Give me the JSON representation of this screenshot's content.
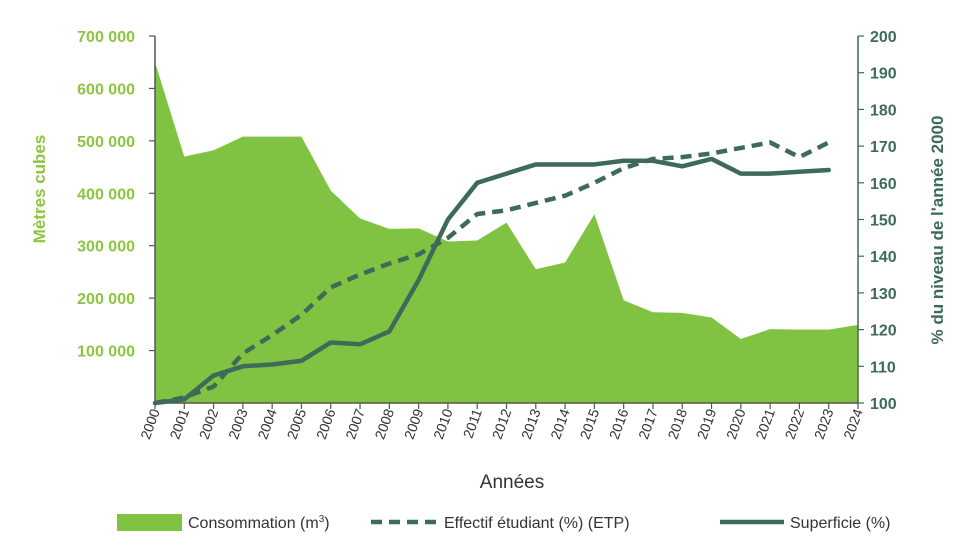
{
  "chart_data": {
    "type": "area+line",
    "x": [
      "2000",
      "2001",
      "2002",
      "2003",
      "2004",
      "2005",
      "2006",
      "2007",
      "2008",
      "2009",
      "2010",
      "2011",
      "2012",
      "2013",
      "2014",
      "2015",
      "2016",
      "2017",
      "2018",
      "2019",
      "2020",
      "2021",
      "2022",
      "2023",
      "2024"
    ],
    "xlabel": "Années",
    "ylabel_left": "Mètres cubes",
    "ylabel_right": "% du niveau de l'année 2000",
    "ylim_left": [
      0,
      700000
    ],
    "ylim_right": [
      100,
      200
    ],
    "yticks_left": [
      "100 000",
      "200 000",
      "300 000",
      "400 000",
      "500 000",
      "600 000",
      "700 000"
    ],
    "yticks_left_values": [
      100000,
      200000,
      300000,
      400000,
      500000,
      600000,
      700000
    ],
    "yticks_right": [
      "100",
      "110",
      "120",
      "130",
      "140",
      "150",
      "160",
      "170",
      "180",
      "190",
      "200"
    ],
    "yticks_right_values": [
      100,
      110,
      120,
      130,
      140,
      150,
      160,
      170,
      180,
      190,
      200
    ],
    "series": [
      {
        "name": "Consommation (m³)",
        "legend_main": "Consommation (m",
        "legend_sup": "3",
        "legend_tail": ")",
        "type": "area",
        "axis": "left",
        "color": "#80c242",
        "values": [
          650000,
          470000,
          482000,
          508000,
          508000,
          508000,
          405000,
          352000,
          332000,
          333000,
          308000,
          310000,
          344000,
          255000,
          268000,
          360000,
          196000,
          173000,
          172000,
          163000,
          122000,
          141000,
          140000,
          140000,
          149000
        ]
      },
      {
        "name": "Effectif étudiant (%) (ETP)",
        "legend_label": "Effectif étudiant (%) (ETP)",
        "type": "line",
        "style": "dashed",
        "axis": "right",
        "color": "#3d6b57",
        "values": [
          100,
          101.5,
          104.5,
          113.5,
          118.5,
          124,
          131.5,
          135,
          138,
          140.5,
          145,
          151.5,
          152.5,
          154.5,
          156.5,
          160,
          164,
          166.5,
          167,
          168,
          169.5,
          171,
          167,
          171,
          null
        ]
      },
      {
        "name": "Superficie (%)",
        "legend_label": "Superficie (%)",
        "type": "line",
        "style": "solid",
        "axis": "right",
        "color": "#3d6b57",
        "values": [
          100,
          101,
          107.5,
          110,
          110.5,
          111.5,
          116.5,
          116,
          119.5,
          133.5,
          150,
          160,
          162.5,
          165,
          165,
          165,
          166,
          166,
          164.5,
          166.5,
          162.5,
          162.5,
          163,
          163.5,
          null
        ]
      }
    ],
    "legend_position": "bottom"
  }
}
